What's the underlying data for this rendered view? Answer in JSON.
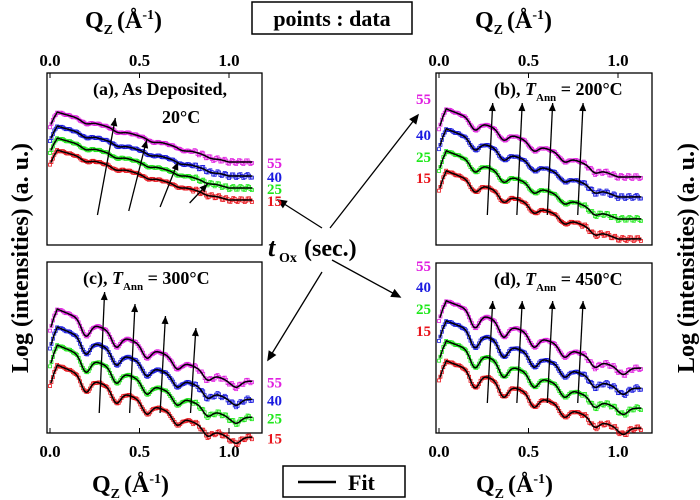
{
  "legend": {
    "points_label": "points : data",
    "fit_label": "Fit"
  },
  "axis_titles": {
    "x": "Q",
    "x_sub": "Z",
    "x_unit": "(Å",
    "x_unit_exp": "-1",
    "x_close": ")",
    "y": "Log (intensities) (a. u.)"
  },
  "center_label": {
    "t": "t",
    "t_sub": "Ox",
    "rest": "(sec.)"
  },
  "chart_data": [
    {
      "type": "scatter+line",
      "panel": "a",
      "title": "(a), As Deposited,",
      "title2": "20°C",
      "xlim": [
        0,
        1.15
      ],
      "xticks": [
        "0.0",
        "0.5",
        "1.0"
      ],
      "xaxis": "top",
      "series": [
        {
          "name": "15",
          "color": "#e8141c",
          "minima": [
            0.2,
            0.37,
            0.55,
            0.72,
            0.88
          ]
        },
        {
          "name": "25",
          "color": "#1ee81a",
          "minima": [
            0.2,
            0.37,
            0.55,
            0.72,
            0.88
          ]
        },
        {
          "name": "40",
          "color": "#1a1ae0",
          "minima": [
            0.2,
            0.38,
            0.56,
            0.73,
            0.9
          ]
        },
        {
          "name": "55",
          "color": "#e020e0",
          "minima": [
            0.2,
            0.38,
            0.57,
            0.74,
            0.9
          ]
        }
      ]
    },
    {
      "type": "scatter+line",
      "panel": "b",
      "title": "(b), T",
      "title_sub": "Ann",
      "title_rest": " = 200°C",
      "xlim": [
        0,
        1.15
      ],
      "xticks": [
        "0.0",
        "0.5",
        "1.0"
      ],
      "xaxis": "top",
      "series": [
        {
          "name": "15",
          "color": "#e8141c",
          "minima": [
            0.2,
            0.36,
            0.53,
            0.7,
            0.87
          ]
        },
        {
          "name": "25",
          "color": "#1ee81a",
          "minima": [
            0.2,
            0.36,
            0.53,
            0.7,
            0.87
          ]
        },
        {
          "name": "40",
          "color": "#1a1ae0",
          "minima": [
            0.2,
            0.36,
            0.53,
            0.7,
            0.87
          ]
        },
        {
          "name": "55",
          "color": "#e020e0",
          "minima": [
            0.2,
            0.36,
            0.53,
            0.7,
            0.87
          ]
        }
      ]
    },
    {
      "type": "scatter+line",
      "panel": "c",
      "title": "(c), T",
      "title_sub": "Ann",
      "title_rest": " = 300°C",
      "xlim": [
        0,
        1.15
      ],
      "xticks": [
        "0.0",
        "0.5",
        "1.0"
      ],
      "xaxis": "bottom",
      "series": [
        {
          "name": "15",
          "color": "#e8141c",
          "minima": [
            0.2,
            0.37,
            0.54,
            0.71,
            0.88,
            1.04
          ]
        },
        {
          "name": "25",
          "color": "#1ee81a",
          "minima": [
            0.2,
            0.37,
            0.54,
            0.71,
            0.88,
            1.04
          ]
        },
        {
          "name": "40",
          "color": "#1a1ae0",
          "minima": [
            0.2,
            0.37,
            0.54,
            0.71,
            0.88,
            1.04
          ]
        },
        {
          "name": "55",
          "color": "#e020e0",
          "minima": [
            0.2,
            0.37,
            0.54,
            0.71,
            0.88,
            1.04
          ]
        }
      ]
    },
    {
      "type": "scatter+line",
      "panel": "d",
      "title": "(d), T",
      "title_sub": "Ann",
      "title_rest": " = 450°C",
      "xlim": [
        0,
        1.15
      ],
      "xticks": [
        "0.0",
        "0.5",
        "1.0"
      ],
      "xaxis": "bottom",
      "series": [
        {
          "name": "15",
          "color": "#e8141c",
          "minima": [
            0.2,
            0.36,
            0.53,
            0.7,
            0.87,
            1.03
          ]
        },
        {
          "name": "25",
          "color": "#1ee81a",
          "minima": [
            0.2,
            0.36,
            0.53,
            0.7,
            0.87,
            1.03
          ]
        },
        {
          "name": "40",
          "color": "#1a1ae0",
          "minima": [
            0.2,
            0.36,
            0.53,
            0.7,
            0.87,
            1.03
          ]
        },
        {
          "name": "55",
          "color": "#e020e0",
          "minima": [
            0.2,
            0.36,
            0.53,
            0.7,
            0.87,
            1.03
          ]
        }
      ]
    }
  ]
}
